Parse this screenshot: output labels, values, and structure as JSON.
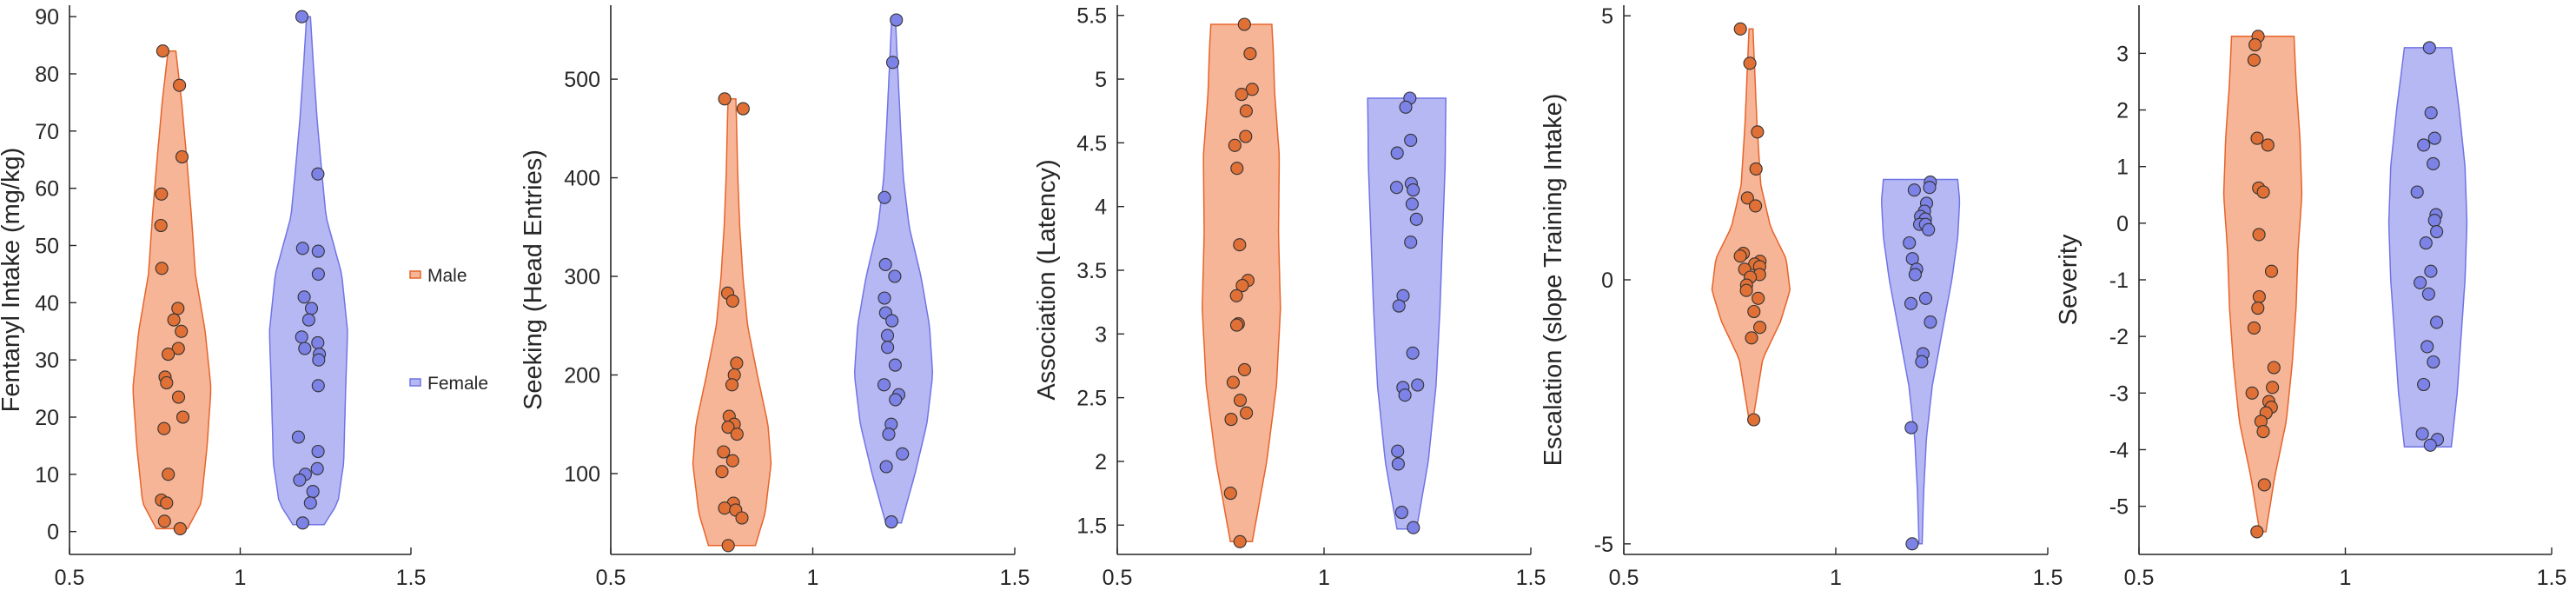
{
  "colors": {
    "male_fill": "#f6b596",
    "male_edge": "#e8632a",
    "male_point": "#e07035",
    "female_fill": "#b6b8f3",
    "female_edge": "#6f74e6",
    "female_point": "#7c82e6",
    "axis": "#262626"
  },
  "legend": {
    "items": [
      "Male",
      "Female"
    ]
  },
  "chart_data": [
    {
      "type": "violin",
      "ylabel": "Fentanyl Intake (mg/kg)",
      "xlim": [
        0.5,
        1.5
      ],
      "xticks": [
        "0.5",
        "1",
        "1.5"
      ],
      "ylim": [
        -4,
        92
      ],
      "yticks": [
        "0",
        "10",
        "20",
        "30",
        "40",
        "50",
        "60",
        "70",
        "80",
        "90"
      ],
      "series": [
        {
          "name": "Male",
          "x": 0.8,
          "range": [
            0.5,
            84
          ],
          "profile": [
            [
              0.5,
              0.4
            ],
            [
              5,
              0.75
            ],
            [
              15,
              0.9
            ],
            [
              25,
              1
            ],
            [
              35,
              0.85
            ],
            [
              45,
              0.6
            ],
            [
              55,
              0.5
            ],
            [
              65,
              0.38
            ],
            [
              75,
              0.25
            ],
            [
              84,
              0.1
            ]
          ],
          "points": [
            84,
            78,
            65.5,
            59,
            53.5,
            46,
            39,
            37,
            35,
            32,
            31,
            27,
            26,
            23.5,
            20,
            18,
            10,
            5.5,
            5,
            1.8,
            0.5
          ]
        },
        {
          "name": "Female",
          "x": 1.2,
          "range": [
            1.2,
            90
          ],
          "profile": [
            [
              1.2,
              0.4
            ],
            [
              5,
              0.75
            ],
            [
              12,
              0.9
            ],
            [
              25,
              0.95
            ],
            [
              35,
              1
            ],
            [
              45,
              0.85
            ],
            [
              55,
              0.45
            ],
            [
              62,
              0.35
            ],
            [
              72,
              0.22
            ],
            [
              82,
              0.12
            ],
            [
              90,
              0.05
            ]
          ],
          "points": [
            90,
            62.5,
            49.5,
            49,
            45,
            41,
            39,
            37,
            34,
            33,
            32,
            31,
            30,
            25.5,
            16.5,
            14,
            11,
            10,
            9,
            7,
            5,
            1.5
          ]
        }
      ]
    },
    {
      "type": "violin",
      "ylabel": "Seeking (Head Entries)",
      "xlim": [
        0.5,
        1.5
      ],
      "xticks": [
        "0.5",
        "1",
        "1.5"
      ],
      "ylim": [
        18,
        575
      ],
      "yticks": [
        "100",
        "200",
        "300",
        "400",
        "500"
      ],
      "series": [
        {
          "name": "Male",
          "x": 0.8,
          "range": [
            27,
            480
          ],
          "profile": [
            [
              27,
              0.6
            ],
            [
              60,
              0.85
            ],
            [
              110,
              1
            ],
            [
              150,
              0.92
            ],
            [
              200,
              0.65
            ],
            [
              250,
              0.4
            ],
            [
              300,
              0.28
            ],
            [
              350,
              0.2
            ],
            [
              400,
              0.15
            ],
            [
              450,
              0.12
            ],
            [
              480,
              0.1
            ]
          ],
          "points": [
            480,
            470,
            283,
            275,
            212,
            200,
            190,
            158,
            150,
            147,
            140,
            122,
            113,
            102,
            70,
            65,
            63,
            55,
            27
          ]
        },
        {
          "name": "Female",
          "x": 1.2,
          "range": [
            50,
            560
          ],
          "profile": [
            [
              50,
              0.2
            ],
            [
              100,
              0.55
            ],
            [
              150,
              0.85
            ],
            [
              200,
              1
            ],
            [
              250,
              0.92
            ],
            [
              300,
              0.7
            ],
            [
              350,
              0.4
            ],
            [
              400,
              0.25
            ],
            [
              450,
              0.18
            ],
            [
              500,
              0.12
            ],
            [
              560,
              0.05
            ]
          ],
          "points": [
            560,
            517,
            380,
            312,
            300,
            278,
            263,
            255,
            240,
            228,
            210,
            190,
            180,
            175,
            150,
            140,
            120,
            107,
            51
          ]
        }
      ]
    },
    {
      "type": "violin",
      "ylabel": "Association (Latency)",
      "xlim": [
        0.5,
        1.5
      ],
      "xticks": [
        "0.5",
        "1",
        "1.5"
      ],
      "ylim": [
        1.27,
        5.58
      ],
      "yticks": [
        "1.5",
        "2",
        "2.5",
        "3",
        "3.5",
        "4",
        "4.5",
        "5",
        "5.5"
      ],
      "series": [
        {
          "name": "Male",
          "x": 0.8,
          "range": [
            1.37,
            5.43
          ],
          "profile": [
            [
              1.37,
              0.28
            ],
            [
              2,
              0.65
            ],
            [
              2.6,
              0.9
            ],
            [
              3.2,
              1
            ],
            [
              3.8,
              0.95
            ],
            [
              4.4,
              0.97
            ],
            [
              4.9,
              0.85
            ],
            [
              5.2,
              0.82
            ],
            [
              5.43,
              0.78
            ]
          ],
          "points": [
            5.43,
            5.2,
            4.92,
            4.88,
            4.75,
            4.55,
            4.48,
            4.3,
            3.7,
            3.42,
            3.38,
            3.3,
            3.08,
            3.07,
            2.72,
            2.62,
            2.48,
            2.38,
            2.33,
            1.75,
            1.37
          ]
        },
        {
          "name": "Female",
          "x": 1.2,
          "range": [
            1.47,
            4.85
          ],
          "profile": [
            [
              1.47,
              0.25
            ],
            [
              2,
              0.55
            ],
            [
              2.6,
              0.75
            ],
            [
              3.2,
              0.85
            ],
            [
              3.8,
              0.92
            ],
            [
              4.3,
              0.98
            ],
            [
              4.85,
              1
            ]
          ],
          "points": [
            4.85,
            4.78,
            4.52,
            4.42,
            4.18,
            4.15,
            4.13,
            4.02,
            3.9,
            3.72,
            3.3,
            3.22,
            2.85,
            2.6,
            2.58,
            2.52,
            2.08,
            1.98,
            1.6,
            1.48
          ]
        }
      ]
    },
    {
      "type": "violin",
      "ylabel": "Escalation (slope Training Intake)",
      "xlim": [
        0.5,
        1.5
      ],
      "xticks": [
        "0.5",
        "1",
        "1.5"
      ],
      "ylim": [
        -5.2,
        5.2
      ],
      "yticks": [
        "-5",
        "0",
        "5"
      ],
      "series": [
        {
          "name": "Male",
          "x": 0.8,
          "range": [
            -2.65,
            4.75
          ],
          "profile": [
            [
              -2.65,
              0.05
            ],
            [
              -1.5,
              0.3
            ],
            [
              -0.8,
              0.75
            ],
            [
              -0.2,
              1
            ],
            [
              0.4,
              0.9
            ],
            [
              1,
              0.5
            ],
            [
              1.8,
              0.25
            ],
            [
              3,
              0.15
            ],
            [
              4.75,
              0.05
            ]
          ],
          "points": [
            4.75,
            4.1,
            2.8,
            2.1,
            1.55,
            1.4,
            0.5,
            0.45,
            0.35,
            0.3,
            0.25,
            0.2,
            0.1,
            0.05,
            -0.1,
            -0.2,
            -0.35,
            -0.6,
            -0.9,
            -1.1,
            -2.65
          ]
        },
        {
          "name": "Female",
          "x": 1.2,
          "range": [
            -5,
            1.9
          ],
          "profile": [
            [
              -5,
              0.04
            ],
            [
              -4,
              0.08
            ],
            [
              -3,
              0.15
            ],
            [
              -2,
              0.3
            ],
            [
              -1,
              0.55
            ],
            [
              0,
              0.8
            ],
            [
              0.8,
              0.95
            ],
            [
              1.5,
              1
            ],
            [
              1.9,
              0.95
            ]
          ],
          "points": [
            1.85,
            1.75,
            1.7,
            1.45,
            1.3,
            1.2,
            1.15,
            1.05,
            1.05,
            0.95,
            0.7,
            0.4,
            0.2,
            0.1,
            -0.35,
            -0.45,
            -0.8,
            -1.4,
            -1.55,
            -2.8,
            -5
          ]
        }
      ]
    },
    {
      "type": "violin",
      "ylabel": "Severity",
      "xlim": [
        0.5,
        1.5
      ],
      "xticks": [
        "0.5",
        "1",
        "1.5"
      ],
      "ylim": [
        -5.85,
        3.85
      ],
      "yticks": [
        "-5",
        "-4",
        "-3",
        "-2",
        "-1",
        "0",
        "1",
        "2",
        "3"
      ],
      "series": [
        {
          "name": "Male",
          "x": 0.8,
          "range": [
            -5.45,
            3.3
          ],
          "profile": [
            [
              -5.45,
              0.08
            ],
            [
              -4.5,
              0.3
            ],
            [
              -3.5,
              0.6
            ],
            [
              -2.5,
              0.75
            ],
            [
              -1.5,
              0.85
            ],
            [
              -0.5,
              0.9
            ],
            [
              0.5,
              1
            ],
            [
              1.5,
              0.95
            ],
            [
              2.5,
              0.85
            ],
            [
              3.3,
              0.8
            ]
          ],
          "points": [
            3.3,
            3.15,
            2.88,
            1.5,
            1.38,
            0.62,
            0.55,
            -0.2,
            -0.85,
            -1.3,
            -1.5,
            -1.85,
            -2.55,
            -2.9,
            -3.0,
            -3.15,
            -3.25,
            -3.35,
            -3.5,
            -3.68,
            -4.62,
            -5.45
          ]
        },
        {
          "name": "Female",
          "x": 1.2,
          "range": [
            -3.95,
            3.1
          ],
          "profile": [
            [
              -3.95,
              0.6
            ],
            [
              -3,
              0.75
            ],
            [
              -2,
              0.85
            ],
            [
              -1,
              0.95
            ],
            [
              0,
              1
            ],
            [
              1,
              0.95
            ],
            [
              2,
              0.8
            ],
            [
              3.1,
              0.6
            ]
          ],
          "points": [
            3.1,
            1.95,
            1.5,
            1.38,
            1.05,
            0.55,
            0.15,
            0.05,
            -0.15,
            -0.35,
            -0.85,
            -1.05,
            -1.25,
            -1.75,
            -2.18,
            -2.45,
            -2.85,
            -3.72,
            -3.82,
            -3.92
          ]
        }
      ]
    }
  ]
}
